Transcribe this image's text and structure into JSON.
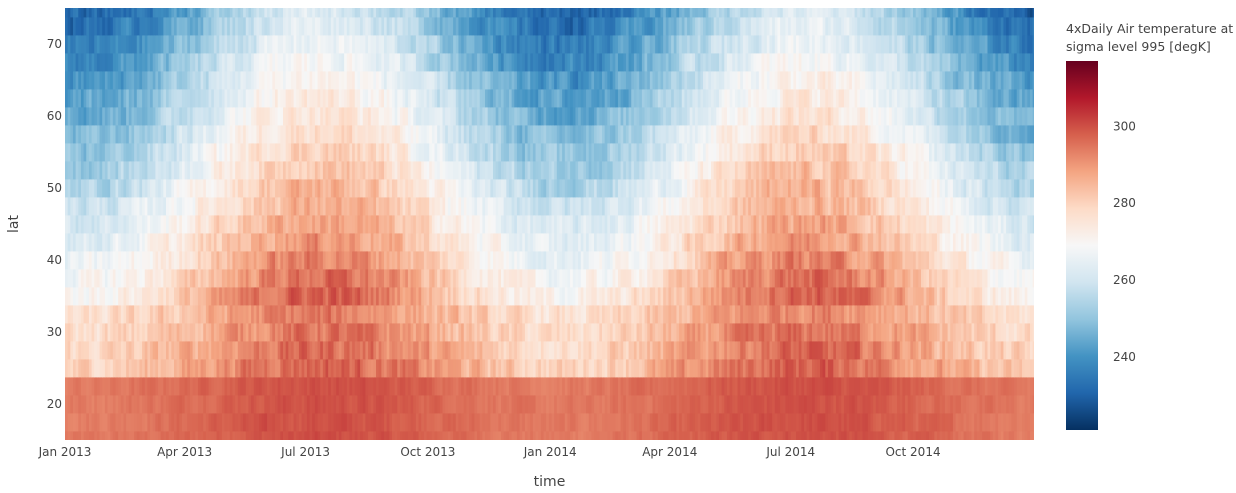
{
  "chart_data": {
    "type": "heatmap",
    "title": "",
    "xlabel": "time",
    "ylabel": "lat",
    "x_range": [
      "2013-01-01",
      "2014-12-31"
    ],
    "x_ticks": [
      {
        "date": "2013-01-01",
        "label": "Jan 2013"
      },
      {
        "date": "2013-04-01",
        "label": "Apr 2013"
      },
      {
        "date": "2013-07-01",
        "label": "Jul 2013"
      },
      {
        "date": "2013-10-01",
        "label": "Oct 2013"
      },
      {
        "date": "2014-01-01",
        "label": "Jan 2014"
      },
      {
        "date": "2014-04-01",
        "label": "Apr 2014"
      },
      {
        "date": "2014-07-01",
        "label": "Jul 2014"
      },
      {
        "date": "2014-10-01",
        "label": "Oct 2014"
      }
    ],
    "y_range": [
      15,
      75
    ],
    "y_ticks": [
      20,
      30,
      40,
      50,
      60,
      70
    ],
    "colorbar": {
      "title_lines": [
        "4xDaily Air temperature at",
        "sigma level 995 [degK]"
      ],
      "colorscale": "RdBu_r",
      "range": [
        221,
        317
      ],
      "ticks": [
        240,
        260,
        280,
        300
      ]
    }
  }
}
